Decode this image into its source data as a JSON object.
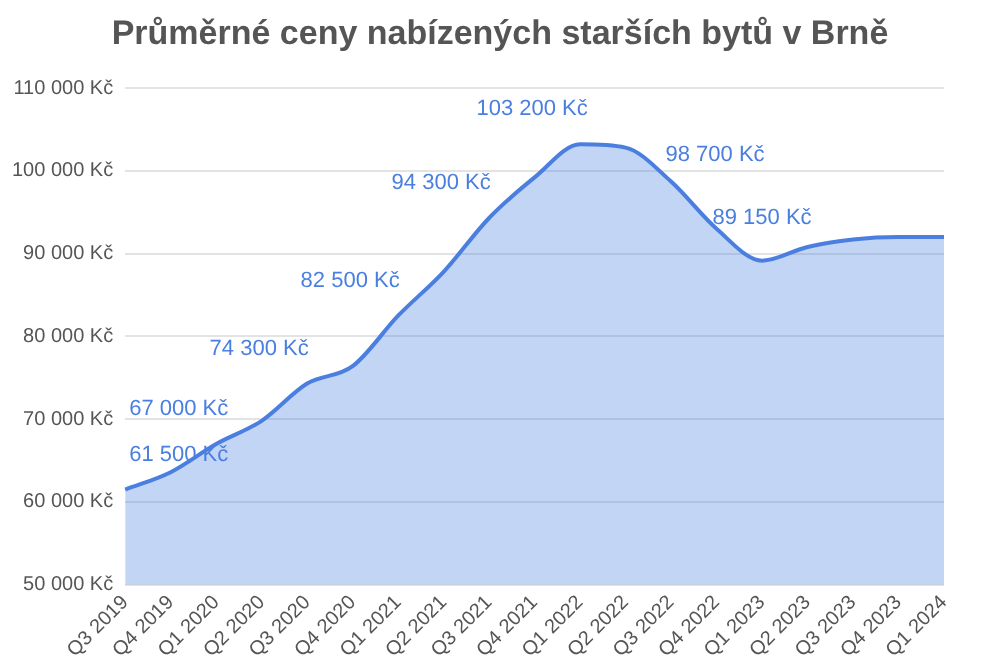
{
  "chart_data": {
    "type": "area",
    "title": "Průměrné ceny nabízených starších bytů v Brně",
    "categories": [
      "Q3 2019",
      "Q4 2019",
      "Q1 2020",
      "Q2 2020",
      "Q3 2020",
      "Q4 2020",
      "Q1 2021",
      "Q2 2021",
      "Q3 2021",
      "Q4 2021",
      "Q1 2022",
      "Q2 2022",
      "Q3 2022",
      "Q4 2022",
      "Q1 2023",
      "Q2 2023",
      "Q3 2023",
      "Q4 2023",
      "Q1 2024"
    ],
    "values": [
      61500,
      63600,
      67000,
      69800,
      74300,
      76400,
      82500,
      87800,
      94300,
      99200,
      103200,
      102800,
      98700,
      93000,
      89150,
      90800,
      91700,
      92000,
      92000
    ],
    "value_labels": [
      "61 500 Kč",
      null,
      "67 000 Kč",
      null,
      "74 300 Kč",
      null,
      "82 500 Kč",
      null,
      "94 300 Kč",
      null,
      "103 200 Kč",
      null,
      "98 700 Kč",
      null,
      "89 150 Kč",
      null,
      null,
      null,
      null
    ],
    "color": "#4a7fe0",
    "ylim": [
      50000,
      110000
    ],
    "yticks": [
      {
        "value": 50000,
        "label": "50 000 Kč"
      },
      {
        "value": 60000,
        "label": "60 000 Kč"
      },
      {
        "value": 70000,
        "label": "70 000 Kč"
      },
      {
        "value": 80000,
        "label": "80 000 Kč"
      },
      {
        "value": 90000,
        "label": "90 000 Kč"
      },
      {
        "value": 100000,
        "label": "100 000 Kč"
      },
      {
        "value": 110000,
        "label": "110 000 Kč"
      }
    ],
    "grid": "y",
    "legend": false,
    "marker": "none"
  }
}
